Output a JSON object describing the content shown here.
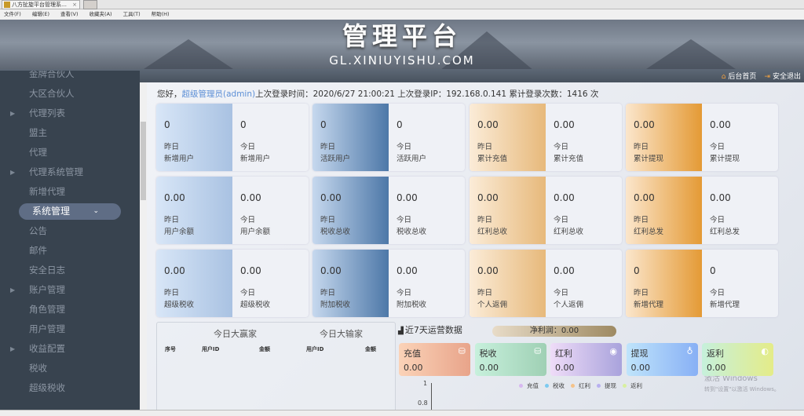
{
  "browser": {
    "tab_title": "八方扯旋平台管理系统 ...",
    "menu": [
      "文件(F)",
      "编辑(E)",
      "查看(V)",
      "收藏夹(A)",
      "工具(T)",
      "帮助(H)"
    ]
  },
  "banner": {
    "title": "管理平台",
    "subtitle": "GL.XINIUYISHU.COM"
  },
  "topnav": {
    "home": "后台首页",
    "logout": "安全退出"
  },
  "sidebar": {
    "items": [
      {
        "label": "金牌合伙人",
        "arrow": false
      },
      {
        "label": "大区合伙人",
        "arrow": false
      },
      {
        "label": "代理列表",
        "arrow": true
      },
      {
        "label": "盟主",
        "arrow": false
      },
      {
        "label": "代理",
        "arrow": false
      },
      {
        "label": "代理系统管理",
        "arrow": true
      },
      {
        "label": "新增代理",
        "arrow": false
      },
      {
        "label": "系统管理",
        "active": true
      },
      {
        "label": "公告",
        "arrow": false
      },
      {
        "label": "邮件",
        "arrow": false
      },
      {
        "label": "安全日志",
        "arrow": false
      },
      {
        "label": "账户管理",
        "arrow": true
      },
      {
        "label": "角色管理",
        "arrow": false
      },
      {
        "label": "用户管理",
        "arrow": false
      },
      {
        "label": "收益配置",
        "arrow": true
      },
      {
        "label": "税收",
        "arrow": false
      },
      {
        "label": "超级税收",
        "arrow": false
      }
    ]
  },
  "welcome": {
    "greet": "您好，",
    "user": "超级管理员(admin)",
    "rest": "上次登录时间：2020/6/27 21:00:21 上次登录IP：192.168.0.141 累计登录次数：1416 次"
  },
  "cards": [
    {
      "yv": "0",
      "tv": "0",
      "name": "新增用户"
    },
    {
      "yv": "0",
      "tv": "0",
      "name": "活跃用户"
    },
    {
      "yv": "0.00",
      "tv": "0.00",
      "name": "累计充值"
    },
    {
      "yv": "0.00",
      "tv": "0.00",
      "name": "累计提现"
    },
    {
      "yv": "0.00",
      "tv": "0.00",
      "name": "用户余额"
    },
    {
      "yv": "0.00",
      "tv": "0.00",
      "name": "税收总收"
    },
    {
      "yv": "0.00",
      "tv": "0.00",
      "name": "红利总收"
    },
    {
      "yv": "0.00",
      "tv": "0.00",
      "name": "红利总发"
    },
    {
      "yv": "0.00",
      "tv": "0.00",
      "name": "超级税收"
    },
    {
      "yv": "0.00",
      "tv": "0.00",
      "name": "附加税收"
    },
    {
      "yv": "0.00",
      "tv": "0.00",
      "name": "个人返佣"
    },
    {
      "yv": "0",
      "tv": "0",
      "name": "新增代理"
    }
  ],
  "labels": {
    "yesterday": "昨日",
    "today": "今日"
  },
  "rank": {
    "winners": "今日大赢家",
    "losers": "今日大输家",
    "cols": [
      "序号",
      "用户ID",
      "金额",
      "用户ID",
      "金额"
    ]
  },
  "ops": {
    "title": "近7天运营数据",
    "profit": "净利润：0.00",
    "stats": [
      {
        "name": "充值",
        "value": "0.00",
        "bg": "linear-gradient(90deg,#fbd3b8,#e8a48a)"
      },
      {
        "name": "税收",
        "value": "0.00",
        "bg": "linear-gradient(90deg,#c7f0dc,#9fd0b4)"
      },
      {
        "name": "红利",
        "value": "0.00",
        "bg": "linear-gradient(90deg,#efdcf8,#a9a3dc)"
      },
      {
        "name": "提现",
        "value": "0.00",
        "bg": "linear-gradient(90deg,#bfe4fb,#88b0f5)"
      },
      {
        "name": "返利",
        "value": "0.00",
        "bg": "linear-gradient(90deg,#c6f0dc,#e4ec88)"
      }
    ],
    "legend": [
      {
        "name": "充值",
        "color": "#d7b8f0"
      },
      {
        "name": "税收",
        "color": "#7ccaf0"
      },
      {
        "name": "红利",
        "color": "#f5c38a"
      },
      {
        "name": "提现",
        "color": "#b8b0f0"
      },
      {
        "name": "返利",
        "color": "#d8f0a0"
      }
    ],
    "yticks": [
      "1",
      "0.8"
    ]
  },
  "watermark": {
    "line1": "激活 Windows",
    "line2": "转到\"设置\"以激活 Windows。"
  }
}
